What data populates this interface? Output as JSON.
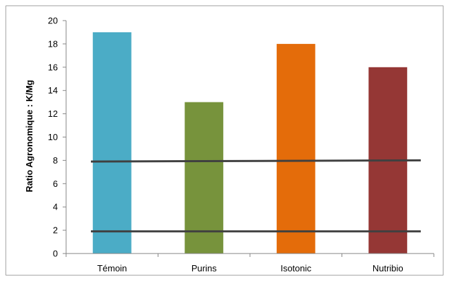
{
  "chart_data": {
    "type": "bar",
    "title": "",
    "xlabel": "",
    "ylabel": "Ratio Agronomique : K/Mg",
    "categories": [
      "Témoin",
      "Purins",
      "Isotonic",
      "Nutribio"
    ],
    "values": [
      19,
      13,
      18,
      16
    ],
    "bar_colors": [
      "#4bacc6",
      "#77933c",
      "#e46c0a",
      "#953735"
    ],
    "ylim": [
      0,
      20
    ],
    "y_ticks": [
      "0",
      "2",
      "4",
      "6",
      "8",
      "10",
      "12",
      "14",
      "16",
      "18",
      "20"
    ],
    "reference_lines": [
      {
        "y_start": 1.9,
        "y_end": 1.9,
        "color": "#404040"
      },
      {
        "y_start": 7.9,
        "y_end": 8.0,
        "color": "#404040"
      }
    ],
    "grid": false,
    "legend": "none"
  }
}
